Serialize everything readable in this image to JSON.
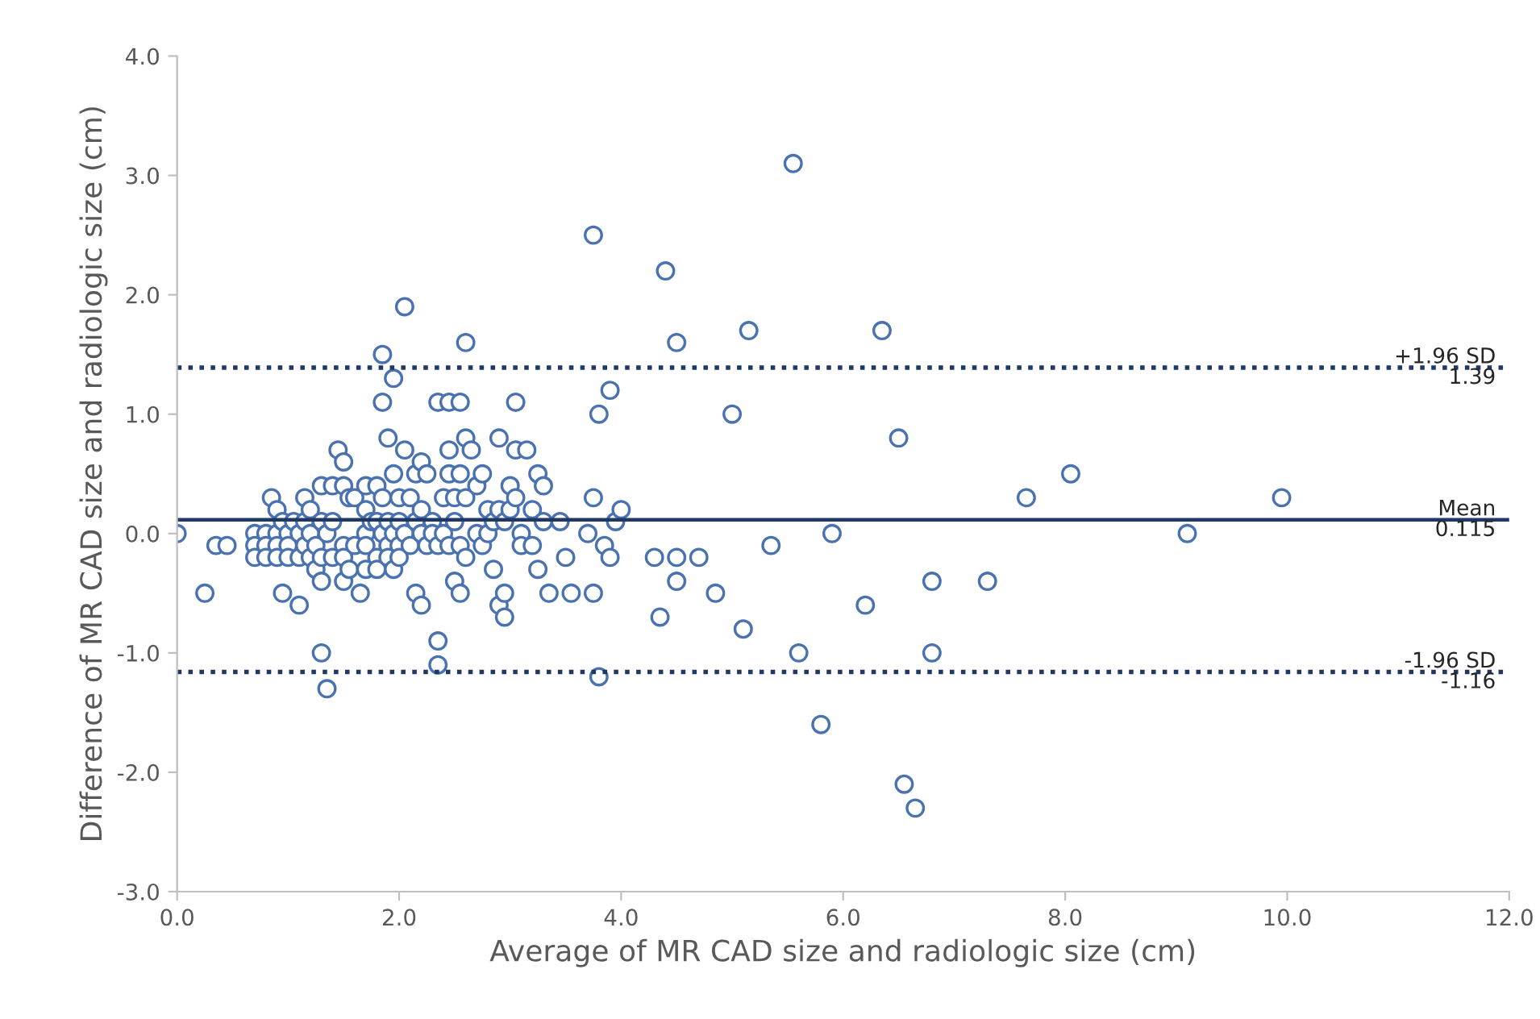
{
  "chart_data": {
    "type": "scatter",
    "xlabel": "Average of MR CAD size and radiologic size (cm)",
    "ylabel": "Difference of MR CAD size and radiologic size (cm)",
    "xlim": [
      0,
      12
    ],
    "ylim": [
      -3,
      4
    ],
    "xticks": [
      {
        "value": 0,
        "label": "0.0"
      },
      {
        "value": 2,
        "label": "2.0"
      },
      {
        "value": 4,
        "label": "4.0"
      },
      {
        "value": 6,
        "label": "6.0"
      },
      {
        "value": 8,
        "label": "8.0"
      },
      {
        "value": 10,
        "label": "10.0"
      },
      {
        "value": 12,
        "label": "12.0"
      }
    ],
    "yticks": [
      {
        "value": -3,
        "label": "-3.0"
      },
      {
        "value": -2,
        "label": "-2.0"
      },
      {
        "value": -1,
        "label": "-1.0"
      },
      {
        "value": 0,
        "label": "0.0"
      },
      {
        "value": 1,
        "label": "1.0"
      },
      {
        "value": 2,
        "label": "2.0"
      },
      {
        "value": 3,
        "label": "3.0"
      },
      {
        "value": 4,
        "label": "4.0"
      }
    ],
    "grid": false,
    "legend": false,
    "marker": "circle",
    "series": [
      {
        "color": "#4a72b0",
        "x": [
          0,
          0.25,
          0.35,
          0.45,
          0.7,
          0.7,
          0.7,
          0.8,
          0.8,
          0.8,
          0.85,
          0.9,
          0.9,
          0.9,
          0.9,
          0.95,
          0.95,
          1.0,
          1.0,
          1.0,
          1.05,
          1.1,
          1.1,
          1.1,
          1.15,
          1.15,
          1.15,
          1.2,
          1.2,
          1.2,
          1.25,
          1.25,
          1.3,
          1.3,
          1.3,
          1.3,
          1.3,
          1.35,
          1.35,
          1.4,
          1.4,
          1.4,
          1.45,
          1.5,
          1.5,
          1.5,
          1.5,
          1.5,
          1.55,
          1.55,
          1.6,
          1.6,
          1.65,
          1.7,
          1.7,
          1.7,
          1.7,
          1.7,
          1.75,
          1.8,
          1.8,
          1.8,
          1.8,
          1.85,
          1.85,
          1.85,
          1.85,
          1.9,
          1.9,
          1.9,
          1.9,
          1.95,
          1.95,
          1.95,
          1.95,
          2.0,
          2.0,
          2.0,
          2.0,
          2.05,
          2.05,
          2.05,
          2.1,
          2.1,
          2.15,
          2.15,
          2.15,
          2.2,
          2.2,
          2.2,
          2.2,
          2.25,
          2.25,
          2.3,
          2.3,
          2.35,
          2.35,
          2.35,
          2.35,
          2.4,
          2.4,
          2.45,
          2.45,
          2.45,
          2.45,
          2.5,
          2.5,
          2.5,
          2.55,
          2.55,
          2.55,
          2.55,
          2.6,
          2.6,
          2.6,
          2.6,
          2.65,
          2.7,
          2.7,
          2.75,
          2.75,
          2.8,
          2.8,
          2.85,
          2.85,
          2.9,
          2.9,
          2.9,
          2.95,
          2.95,
          2.95,
          3.0,
          3.0,
          3.05,
          3.05,
          3.05,
          3.1,
          3.1,
          3.15,
          3.2,
          3.2,
          3.25,
          3.25,
          3.3,
          3.3,
          3.35,
          3.45,
          3.5,
          3.55,
          3.7,
          3.75,
          3.75,
          3.75,
          3.8,
          3.8,
          3.85,
          3.9,
          3.9,
          3.95,
          4.0,
          4.3,
          4.35,
          4.4,
          4.5,
          4.5,
          4.5,
          4.7,
          4.85,
          5.0,
          5.1,
          5.15,
          5.35,
          5.55,
          5.6,
          5.8,
          5.9,
          6.2,
          6.35,
          6.5,
          6.55,
          6.65,
          6.8,
          6.8,
          7.3,
          7.65,
          8.05,
          9.1,
          9.95
        ],
        "values": [
          0,
          -0.5,
          -0.1,
          -0.1,
          0,
          -0.1,
          -0.2,
          0,
          -0.1,
          -0.2,
          0.3,
          0.2,
          0,
          -0.1,
          -0.2,
          0.1,
          -0.5,
          0,
          -0.1,
          -0.2,
          0.1,
          0,
          -0.2,
          -0.6,
          0.3,
          0.1,
          -0.1,
          0,
          -0.2,
          0.2,
          -0.1,
          -0.3,
          0.4,
          0.1,
          -0.2,
          -1.0,
          -0.4,
          0,
          -1.3,
          0.4,
          0.1,
          -0.2,
          0.7,
          0.6,
          0.4,
          -0.1,
          -0.2,
          -0.4,
          -0.3,
          0.3,
          0.3,
          -0.1,
          -0.5,
          0.4,
          0.2,
          0,
          -0.1,
          -0.3,
          0.1,
          0.4,
          0.1,
          -0.2,
          -0.3,
          1.5,
          1.1,
          0.3,
          0,
          0.8,
          0.1,
          -0.1,
          -0.2,
          1.3,
          0.5,
          0,
          -0.3,
          0.3,
          0.1,
          -0.1,
          -0.2,
          1.9,
          0.7,
          0,
          0.3,
          -0.1,
          0.5,
          0.1,
          -0.5,
          0.6,
          0.2,
          0,
          -0.6,
          0.5,
          -0.1,
          0.1,
          0,
          1.1,
          -0.1,
          -0.9,
          -1.1,
          0.3,
          0,
          1.1,
          0.7,
          0.5,
          -0.1,
          0.3,
          0.1,
          -0.4,
          1.1,
          0.5,
          -0.1,
          -0.5,
          1.6,
          0.8,
          0.3,
          -0.2,
          0.7,
          0.4,
          0,
          0.5,
          -0.1,
          0.2,
          0,
          0.1,
          -0.3,
          0.8,
          0.2,
          -0.6,
          0.1,
          -0.5,
          -0.7,
          0.4,
          0.2,
          1.1,
          0.7,
          0.3,
          0,
          -0.1,
          0.7,
          0.2,
          -0.1,
          0.5,
          -0.3,
          0.4,
          0.1,
          -0.5,
          0.1,
          -0.2,
          -0.5,
          0,
          2.5,
          0.3,
          -0.5,
          1.0,
          -1.2,
          -0.1,
          1.2,
          -0.2,
          0.1,
          0.2,
          -0.2,
          -0.7,
          2.2,
          1.6,
          -0.2,
          -0.4,
          -0.2,
          -0.5,
          1.0,
          -0.8,
          1.7,
          -0.1,
          3.1,
          -1.0,
          -1.6,
          0,
          -0.6,
          1.7,
          0.8,
          -2.1,
          -2.3,
          -0.4,
          -1.0,
          -0.4,
          0.3,
          0.5,
          0,
          0.3
        ]
      }
    ],
    "ref_lines": [
      {
        "axis": "y",
        "value": 1.39,
        "label": "+1.96 SD\n1.39",
        "color": "#1f3864",
        "line_style": "dotted"
      },
      {
        "axis": "y",
        "value": 0.115,
        "label": "Mean\n0.115",
        "color": "#1f3864",
        "line_style": "solid"
      },
      {
        "axis": "y",
        "value": -1.16,
        "label": "-1.96 SD\n-1.16",
        "color": "#1f3864",
        "line_style": "dotted"
      }
    ]
  }
}
